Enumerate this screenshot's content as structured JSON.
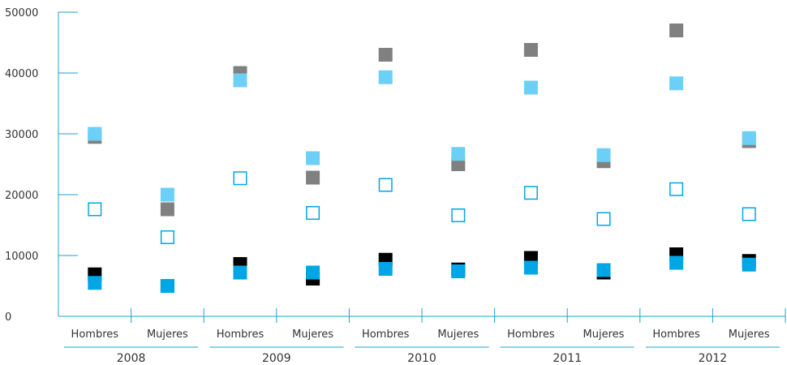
{
  "colors": {
    "axis": "#1aa3d6",
    "dark_gray": "#808080",
    "light_blue": "#6ccff6",
    "black": "#000000",
    "blue": "#00a6e6"
  },
  "chart_data": {
    "type": "scatter",
    "ylim": [
      0,
      50000
    ],
    "yticks": [
      "0",
      "10000",
      "20000",
      "30000",
      "40000",
      "50000"
    ],
    "groups": [
      {
        "year": "2008",
        "categories": [
          "Hombres",
          "Mujeres"
        ]
      },
      {
        "year": "2009",
        "categories": [
          "Hombres",
          "Mujeres"
        ]
      },
      {
        "year": "2010",
        "categories": [
          "Hombres",
          "Mujeres"
        ]
      },
      {
        "year": "2011",
        "categories": [
          "Hombres",
          "Mujeres"
        ]
      },
      {
        "year": "2012",
        "categories": [
          "Hombres",
          "Mujeres"
        ]
      }
    ],
    "series": [
      {
        "marker": "filled-dark-gray",
        "values": [
          29500,
          17600,
          40000,
          22800,
          43000,
          25000,
          43800,
          25500,
          47000,
          28800
        ]
      },
      {
        "marker": "filled-light-blue",
        "values": [
          30000,
          20000,
          38800,
          26000,
          39300,
          26700,
          37600,
          26500,
          38300,
          29300
        ]
      },
      {
        "marker": "hollow-blue",
        "values": [
          17600,
          13000,
          22700,
          17000,
          21600,
          16600,
          20300,
          16000,
          20900,
          16800
        ]
      },
      {
        "marker": "filled-black",
        "values": [
          6900,
          5000,
          8600,
          6200,
          9300,
          7700,
          9600,
          7200,
          10200,
          9100
        ]
      },
      {
        "marker": "filled-blue",
        "values": [
          5500,
          5000,
          7200,
          7200,
          7800,
          7400,
          8000,
          7600,
          8800,
          8500
        ]
      }
    ]
  }
}
